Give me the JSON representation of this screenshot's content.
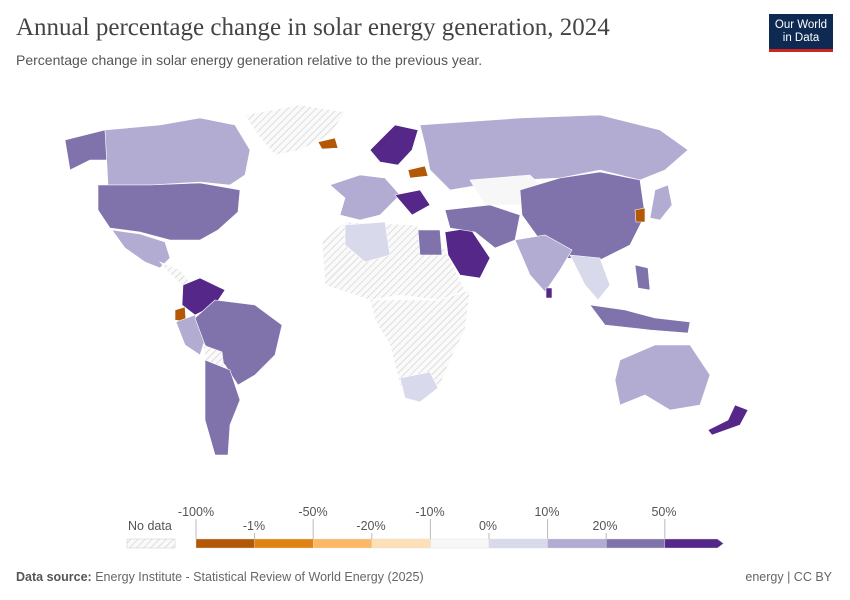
{
  "header": {
    "title": "Annual percentage change in solar energy generation, 2024",
    "subtitle": "Percentage change in solar energy generation relative to the previous year.",
    "logo_text": "Our World in Data"
  },
  "legend": {
    "no_data_label": "No data",
    "labels": [
      "-100%",
      "-1%",
      "-50%",
      "-20%",
      "-10%",
      "0%",
      "10%",
      "20%",
      "50%"
    ],
    "bin_colors": [
      "#b35806",
      "#e08214",
      "#fdb863",
      "#fee0b6",
      "#f7f7f7",
      "#d8daeb",
      "#b2abd2",
      "#8073ac",
      "#542788"
    ],
    "no_data_pattern": "hatched-gray"
  },
  "footer": {
    "source_label": "Data source:",
    "source_text": "Energy Institute - Statistical Review of World Energy (2025)",
    "license": "energy | CC BY"
  }
}
